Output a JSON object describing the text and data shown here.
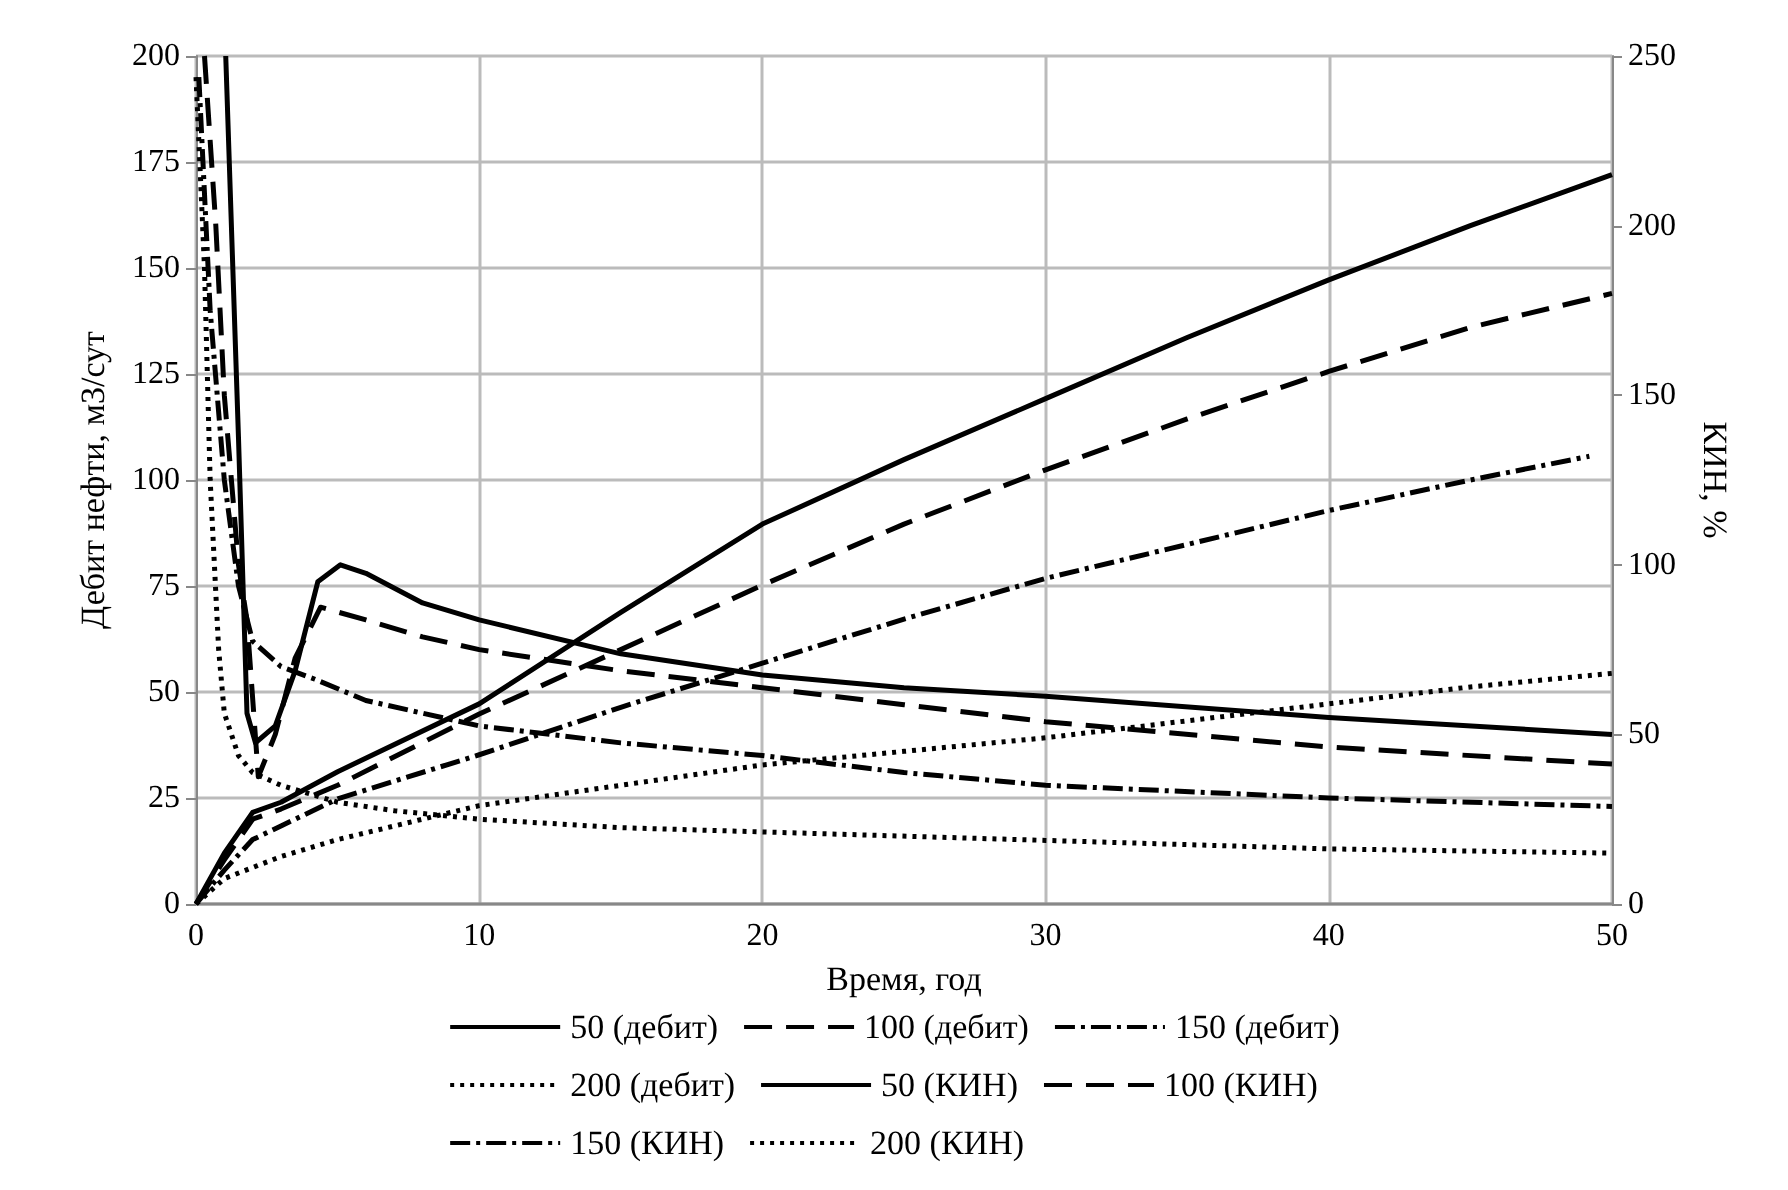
{
  "chart_data": {
    "type": "line",
    "xlabel": "Время, год",
    "ylabel": "Дебит нефти, м3/сут",
    "y2label": "КИН, %",
    "xlim": [
      0,
      50
    ],
    "xticks": [
      0,
      10,
      20,
      30,
      40,
      50
    ],
    "ylim": [
      0,
      200
    ],
    "yticks": [
      0,
      25,
      50,
      75,
      100,
      125,
      150,
      175,
      200
    ],
    "y2lim": [
      0,
      250
    ],
    "y2ticks": [
      0,
      50,
      100,
      150,
      200,
      250
    ],
    "grid": true,
    "legend": "bottom",
    "marker": "none",
    "series": [
      {
        "name": "50 (дебит)",
        "color": "#000000",
        "line_style": "solid",
        "x": [
          1.05,
          1.5,
          1.8,
          2.1,
          2.8,
          3.5,
          4.3,
          5.1,
          6,
          8,
          10,
          15,
          20,
          25,
          30,
          40,
          50
        ],
        "values": [
          200,
          110,
          45,
          38,
          42,
          55,
          76,
          80,
          78,
          71,
          67,
          59,
          54,
          51,
          49,
          44,
          40
        ]
      },
      {
        "name": "100 (дебит)",
        "color": "#000000",
        "line_style": "dashed",
        "x": [
          0.3,
          0.7,
          1,
          1.5,
          1.8,
          2.2,
          2.8,
          3.5,
          4.4,
          6,
          8,
          10,
          15,
          20,
          25,
          30,
          40,
          50
        ],
        "values": [
          200,
          160,
          120,
          80,
          67,
          30,
          40,
          58,
          70,
          67,
          63,
          60,
          55,
          51,
          47,
          43,
          37,
          33
        ]
      },
      {
        "name": "150 (дебит)",
        "color": "#000000",
        "line_style": "dashdot",
        "x": [
          0.1,
          0.5,
          1,
          1.5,
          2,
          3,
          4.2,
          6,
          8,
          10,
          15,
          20,
          25,
          30,
          40,
          50
        ],
        "values": [
          195,
          140,
          100,
          75,
          62,
          56,
          53,
          48,
          45,
          42,
          38,
          35,
          31,
          28,
          25,
          23
        ]
      },
      {
        "name": "200 (дебит)",
        "color": "#000000",
        "line_style": "dotted",
        "x": [
          0,
          0.3,
          0.5,
          0.8,
          1,
          1.5,
          2,
          3,
          5,
          7,
          10,
          15,
          20,
          30,
          40,
          50
        ],
        "values": [
          195,
          150,
          100,
          60,
          45,
          35,
          31,
          28,
          24,
          22,
          20,
          18,
          17,
          15,
          13,
          12
        ]
      },
      {
        "name": "50 (КИН)",
        "color": "#000000",
        "line_style": "solid",
        "axis": "y2",
        "x": [
          0,
          1,
          2,
          3,
          5,
          10,
          15,
          20,
          25,
          30,
          35,
          40,
          45,
          50
        ],
        "values": [
          0,
          15,
          27,
          30,
          39,
          59,
          86,
          112,
          131,
          149,
          167,
          184,
          200,
          215
        ]
      },
      {
        "name": "100 (КИН)",
        "color": "#000000",
        "line_style": "dashed",
        "axis": "y2",
        "x": [
          0,
          1,
          2,
          3,
          5,
          10,
          15,
          20,
          25,
          30,
          35,
          40,
          45,
          50
        ],
        "values": [
          0,
          13,
          25,
          28,
          35,
          56,
          75,
          94,
          112,
          128,
          143,
          157,
          170,
          180
        ]
      },
      {
        "name": "150 (КИН)",
        "color": "#000000",
        "line_style": "dashdot",
        "axis": "y2",
        "x": [
          0,
          1,
          2,
          3,
          5,
          10,
          15,
          20,
          25,
          30,
          35,
          40,
          45,
          49.2
        ],
        "values": [
          0,
          10,
          19,
          23,
          31,
          44,
          58,
          71,
          84,
          96,
          106,
          116,
          125,
          132
        ]
      },
      {
        "name": "200 (КИН)",
        "color": "#000000",
        "line_style": "dotted",
        "axis": "y2",
        "x": [
          0,
          1,
          3,
          5,
          10,
          15,
          20,
          25,
          30,
          35,
          40,
          45,
          50
        ],
        "values": [
          0,
          7.5,
          14,
          19,
          29,
          35,
          41,
          45,
          49,
          54,
          59,
          64,
          68
        ]
      }
    ]
  }
}
